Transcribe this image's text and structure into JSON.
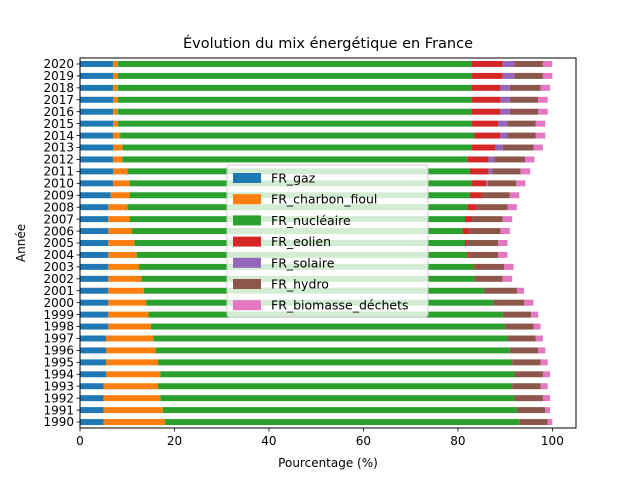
{
  "chart_data": {
    "type": "bar",
    "orientation": "horizontal",
    "stacked": true,
    "title": "Évolution du mix énergétique en France",
    "xlabel": "Pourcentage (%)",
    "ylabel": "Année",
    "xlim": [
      0,
      105
    ],
    "xticks": [
      "0",
      "20",
      "40",
      "60",
      "80",
      "100"
    ],
    "grid": false,
    "legend_position": "center",
    "categories": [
      "1990",
      "1991",
      "1992",
      "1993",
      "1994",
      "1995",
      "1996",
      "1997",
      "1998",
      "1999",
      "2000",
      "2001",
      "2002",
      "2003",
      "2004",
      "2005",
      "2006",
      "2007",
      "2008",
      "2009",
      "2010",
      "2011",
      "2012",
      "2013",
      "2014",
      "2015",
      "2016",
      "2017",
      "2018",
      "2019",
      "2020"
    ],
    "series": [
      {
        "name": "FR_gaz",
        "color": "#1f77b4",
        "values": [
          5.0,
          5.0,
          5.0,
          5.0,
          5.5,
          5.5,
          5.5,
          5.5,
          6.0,
          6.0,
          6.0,
          6.0,
          6.0,
          6.0,
          6.0,
          6.0,
          6.0,
          6.0,
          6.0,
          6.5,
          7.0,
          7.0,
          7.0,
          7.0,
          7.0,
          7.0,
          7.0,
          7.0,
          7.0,
          7.0,
          7.0
        ]
      },
      {
        "name": "FR_charbon_fioul",
        "color": "#ff7f0e",
        "values": [
          13.0,
          12.5,
          12.0,
          11.5,
          11.5,
          11.0,
          10.5,
          10.0,
          9.0,
          8.5,
          8.0,
          7.5,
          7.0,
          6.5,
          6.0,
          5.5,
          5.0,
          4.5,
          4.0,
          4.0,
          3.5,
          3.0,
          2.0,
          2.0,
          1.5,
          1.0,
          1.0,
          1.0,
          1.0,
          1.0,
          1.0
        ]
      },
      {
        "name": "FR_nucléaire",
        "color": "#2ca02c",
        "values": [
          75.0,
          75.0,
          75.0,
          75.0,
          75.0,
          75.0,
          75.0,
          75.0,
          75.0,
          75.0,
          73.5,
          72.0,
          70.5,
          71.0,
          70.0,
          70.0,
          70.0,
          71.0,
          72.0,
          72.0,
          72.5,
          72.5,
          73.0,
          74.0,
          75.0,
          75.0,
          75.0,
          75.0,
          75.0,
          75.0,
          75.0
        ]
      },
      {
        "name": "FR_eolien",
        "color": "#d62728",
        "values": [
          0.0,
          0.0,
          0.0,
          0.0,
          0.0,
          0.0,
          0.0,
          0.0,
          0.0,
          0.0,
          0.0,
          0.0,
          0.0,
          0.3,
          0.5,
          0.5,
          1.5,
          1.5,
          2.0,
          2.5,
          3.0,
          4.0,
          4.5,
          5.0,
          5.5,
          5.5,
          6.0,
          6.0,
          6.0,
          6.5,
          6.5
        ]
      },
      {
        "name": "FR_solaire",
        "color": "#9467bd",
        "values": [
          0.0,
          0.0,
          0.0,
          0.0,
          0.0,
          0.0,
          0.0,
          0.0,
          0.0,
          0.0,
          0.0,
          0.0,
          0.0,
          0.0,
          0.0,
          0.0,
          0.0,
          0.0,
          0.0,
          0.0,
          0.3,
          0.8,
          1.2,
          1.5,
          1.5,
          2.0,
          2.0,
          2.0,
          2.0,
          2.5,
          2.5
        ]
      },
      {
        "name": "FR_hydro",
        "color": "#8c564b",
        "values": [
          6.0,
          6.0,
          6.0,
          6.0,
          6.0,
          6.0,
          6.0,
          6.0,
          6.0,
          6.0,
          6.5,
          7.0,
          6.0,
          6.0,
          6.0,
          6.5,
          6.5,
          6.5,
          6.5,
          6.0,
          6.0,
          6.0,
          6.5,
          6.5,
          6.0,
          6.0,
          6.0,
          6.0,
          6.5,
          6.0,
          6.0
        ]
      },
      {
        "name": "FR_biomasse_déchets",
        "color": "#e377c2",
        "values": [
          1.0,
          1.0,
          1.5,
          1.5,
          1.5,
          1.5,
          1.5,
          1.5,
          1.5,
          1.5,
          2.0,
          1.5,
          2.0,
          2.0,
          2.0,
          2.0,
          2.0,
          2.0,
          2.0,
          2.0,
          2.0,
          2.0,
          2.0,
          2.0,
          2.0,
          2.0,
          2.0,
          2.0,
          2.0,
          2.0,
          2.0
        ]
      }
    ]
  }
}
